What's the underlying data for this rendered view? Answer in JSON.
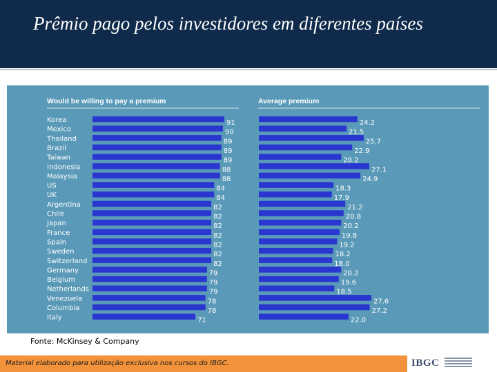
{
  "header": {
    "title": "Prêmio pago pelos investidores em diferentes países"
  },
  "chart_data": [
    {
      "type": "bar",
      "orientation": "horizontal",
      "title": "Would be willing to pay a premium",
      "categories": [
        "Korea",
        "Mexico",
        "Thailand",
        "Brazil",
        "Taiwan",
        "Indonesia",
        "Malaysia",
        "US",
        "UK",
        "Argentina",
        "Chile",
        "Japan",
        "France",
        "Spain",
        "Sweden",
        "Switzerland",
        "Germany",
        "Belgium",
        "Netherlands",
        "Venezuela",
        "Columbia",
        "Italy"
      ],
      "values": [
        91,
        90,
        89,
        89,
        89,
        88,
        88,
        84,
        84,
        82,
        82,
        82,
        82,
        82,
        82,
        82,
        79,
        79,
        79,
        78,
        78,
        71
      ],
      "xlim": [
        0,
        91
      ],
      "bar_color": "#2a36d0",
      "grid": false
    },
    {
      "type": "bar",
      "orientation": "horizontal",
      "title": "Average premium",
      "categories": [
        "Korea",
        "Mexico",
        "Thailand",
        "Brazil",
        "Taiwan",
        "Indonesia",
        "Malaysia",
        "US",
        "UK",
        "Argentina",
        "Chile",
        "Japan",
        "France",
        "Spain",
        "Sweden",
        "Switzerland",
        "Germany",
        "Belgium",
        "Netherlands",
        "Venezuela",
        "Columbia",
        "Italy"
      ],
      "values": [
        24.2,
        21.5,
        25.7,
        22.9,
        20.2,
        27.1,
        24.9,
        18.3,
        17.9,
        21.2,
        20.8,
        20.2,
        19.8,
        19.2,
        18.2,
        18.0,
        20.2,
        19.6,
        18.5,
        27.6,
        27.2,
        22.0
      ],
      "labels": [
        "24.2",
        "21.5",
        "25.7",
        "22.9",
        "20.2",
        "27.1",
        "24.9",
        "18.3",
        "17.9",
        "21.2",
        "20.8",
        "20.2",
        "19.8",
        "19.2",
        "18.2",
        "18.0",
        "20.2",
        "19.6",
        "18.5",
        "27.6",
        "27.2",
        "22.0"
      ],
      "xlim": [
        0,
        27.6
      ],
      "bar_color": "#2a36d0",
      "grid": false
    }
  ],
  "source": "Fonte: McKinsey & Company",
  "footer": {
    "text": "Material elaborado para utilização exclusiva nos cursos do IBGC."
  },
  "logo": {
    "name": "IBGC"
  },
  "colors": {
    "header_bg": "#0f2a4a",
    "chart_bg": "#5a9ab8",
    "bar": "#2a36d0",
    "footer_bg": "#f2923a"
  }
}
